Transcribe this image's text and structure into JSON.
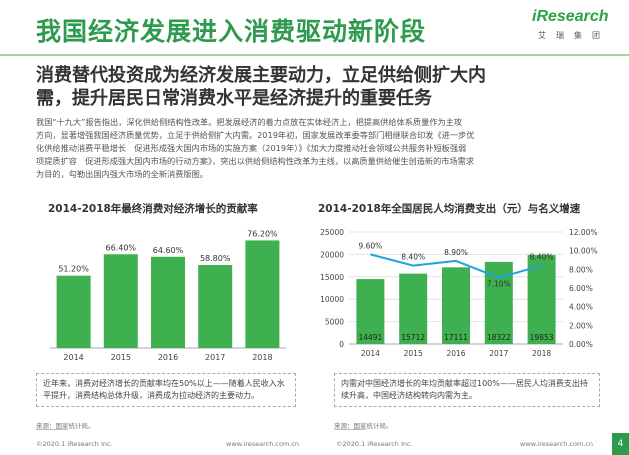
{
  "header": {
    "title": "我国经济发展进入消费驱动新阶段",
    "logo_text": "iResearch",
    "logo_subtext": "艾瑞集团"
  },
  "subtitle": {
    "line1": "消费替代投资成为经济发展主要动力，立足供给侧扩大内",
    "line2": "需，提升居民日常消费水平是经济提升的重要任务"
  },
  "paragraph": {
    "lines": [
      "我国“十九大”报告指出，深化供给侧结构性改革。把发展经济的着力点放在实体经济上，把提高供给体系质量作为主攻",
      "方向，显著增强我国经济质量优势，立足于供给侧扩大内需。2019年初，国家发展改革委等部门相继联合印发《进一步优",
      "化供给推动消费平稳增长　促进形成强大国内市场的实施方案（2019年）》《加大力度推动社会领域公共服务补短板强弱",
      "项提质扩容　促进形成强大国内市场的行动方案》，突出以供给侧结构性改革为主线，以高质量供给催生创造新的市场需求",
      "为目的，勾勒出国内强大市场的全新消费版图。"
    ]
  },
  "colors": {
    "brand_green": "#2e9a4e",
    "bar_green": "#3fb04f",
    "line_blue": "#1fa3e0"
  },
  "chart_data": [
    {
      "type": "bar",
      "title": "2014-2018年最终消费对经济增长的贡献率",
      "categories": [
        "2014",
        "2015",
        "2016",
        "2017",
        "2018"
      ],
      "values": [
        51.2,
        66.4,
        64.6,
        58.8,
        76.2
      ],
      "value_labels": [
        "51.20%",
        "66.40%",
        "64.60%",
        "58.80%",
        "76.20%"
      ],
      "ylim": [
        0,
        85
      ],
      "grid": false
    },
    {
      "type": "bar+line",
      "title": "2014-2018年全国居民人均消费支出（元）与名义增速",
      "categories": [
        "2014",
        "2015",
        "2016",
        "2017",
        "2018"
      ],
      "series": [
        {
          "values": [
            14491,
            15712,
            17111,
            18322,
            19853
          ]
        },
        {
          "values": [
            9.6,
            8.4,
            8.9,
            7.1,
            8.4
          ],
          "labels": [
            "9.60%",
            "8.40%",
            "8.90%",
            "7.10%",
            "8.40%"
          ]
        }
      ],
      "y_left_ticks": [
        "0",
        "5000",
        "10000",
        "15000",
        "20000",
        "25000"
      ],
      "y_left_lim": [
        0,
        25000
      ],
      "y_right_ticks": [
        "0.00%",
        "2.00%",
        "4.00%",
        "6.00%",
        "8.00%",
        "10.00%",
        "12.00%"
      ],
      "y_right_lim": [
        0,
        12
      ],
      "grid": true
    }
  ],
  "notes": {
    "left": "近年来，消费对经济增长的贡献率均在50%以上——随着人民收入水平提升，消费结构总体升级，消费成为拉动经济的主要动力。",
    "right": "内需对中国经济增长的年均贡献率超过100%——居民人均消费支出持续升高，中国经济结构转向内需为主。"
  },
  "sources": {
    "left": "来源：国家统计局。",
    "right": "来源：国家统计局。"
  },
  "footer": {
    "copyright_left": "©2020.1 iResearch Inc.",
    "url_left": "www.iresearch.com.cn",
    "copyright_right": "©2020.1 iResearch Inc.",
    "url_right": "www.iresearch.com.cn",
    "page_number": "4"
  }
}
